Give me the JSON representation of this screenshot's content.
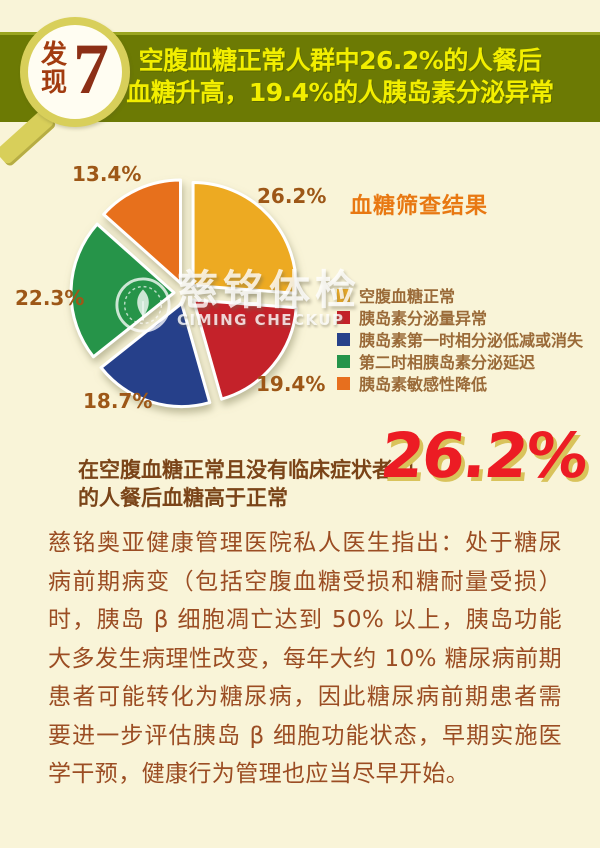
{
  "header": {
    "badge_label": "发现",
    "badge_number": "7",
    "line1": "空腹血糖正常人群中26.2%的人餐后",
    "line2": "血糖升高，19.4%的人胰岛素分泌异常"
  },
  "chart_data": {
    "type": "pie",
    "title": "血糖筛查结果",
    "start_angle_deg": -90,
    "direction": "clockwise",
    "exploded": true,
    "legend_position": "right",
    "slices": [
      {
        "label": "26.2%",
        "value": 26.2,
        "legend": "空腹血糖正常",
        "color": "#edaa23"
      },
      {
        "label": "19.4%",
        "value": 19.4,
        "legend": "胰岛素分泌量异常",
        "color": "#c42129"
      },
      {
        "label": "18.7%",
        "value": 18.7,
        "legend": "胰岛素第一时相分泌低减或消失",
        "color": "#27418a"
      },
      {
        "label": "22.3%",
        "value": 22.3,
        "legend": "第二时相胰岛素分泌延迟",
        "color": "#25944a"
      },
      {
        "label": "13.4%",
        "value": 13.4,
        "legend": "胰岛素敏感性降低",
        "color": "#e76f1e"
      }
    ]
  },
  "watermark": {
    "cn": "慈铭体检",
    "en": "CIMING CHECKUP"
  },
  "stat": {
    "line1": "在空腹血糖正常且没有临床症状者中",
    "line2": "的人餐后血糖高于正常",
    "big_value": "26.2%"
  },
  "body": {
    "paragraph": "慈铭奥亚健康管理医院私人医生指出：处于糖尿病前期病变（包括空腹血糖受损和糖耐量受损）时，胰岛 β 细胞凋亡达到 50% 以上，胰岛功能大多发生病理性改变，每年大约 10% 糖尿病前期患者可能转化为糖尿病，因此糖尿病前期患者需要进一步评估胰岛 β 细胞功能状态，早期实施医学干预，健康行为管理也应当尽早开始。"
  },
  "colors": {
    "page_bg": "#f9f4d8",
    "banner_bg": "#6c7a04",
    "banner_text": "#f2ee00",
    "badge_ring": "#d8cf5a",
    "badge_text": "#a23c10",
    "badge_number": "#8c2f16",
    "title_orange": "#e87812",
    "pct_label": "#9d5717",
    "legend_text": "#9a6a38",
    "stat_text": "#7a4418",
    "stat_big": "#ec1c24",
    "stat_big_shadow": "#d9c35b",
    "body_text": "#9b4d23"
  }
}
